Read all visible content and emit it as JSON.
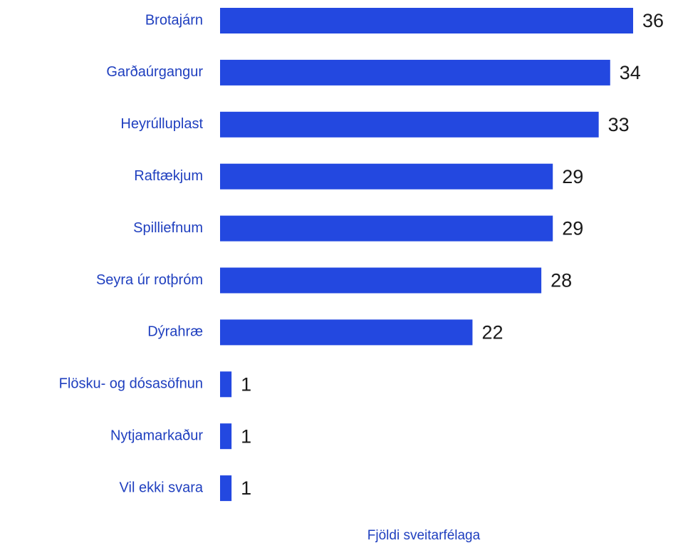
{
  "chart_data": {
    "type": "bar",
    "orientation": "horizontal",
    "categories": [
      "Brotajárn",
      "Garðaúrgangur",
      "Heyrúlluplast",
      "Raftækjum",
      "Spilliefnum",
      "Seyra úr rotþróm",
      "Dýrahræ",
      "Flösku- og dósasöfnun",
      "Nytjamarkaður",
      "Vil ekki svara"
    ],
    "values": [
      36,
      34,
      33,
      29,
      29,
      28,
      22,
      1,
      1,
      1
    ],
    "color": "#2348e0",
    "xlabel": "Fjöldi sveitarfélaga",
    "xlim": [
      0,
      36
    ]
  }
}
